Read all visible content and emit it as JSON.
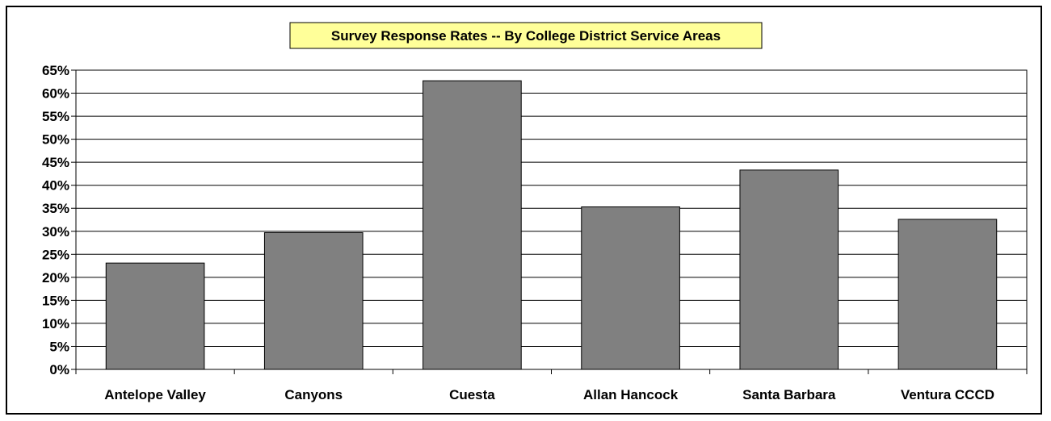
{
  "chart_data": {
    "type": "bar",
    "title": "Survey Response Rates -- By College District Service Areas",
    "xlabel": "",
    "ylabel": "",
    "categories": [
      "Antelope Valley",
      "Canyons",
      "Cuesta",
      "Allan Hancock",
      "Santa Barbara",
      "Ventura CCCD"
    ],
    "values": [
      23.1,
      29.7,
      62.7,
      35.3,
      43.3,
      32.6
    ],
    "ylim": [
      0,
      65
    ],
    "yticks": [
      0,
      5,
      10,
      15,
      20,
      25,
      30,
      35,
      40,
      45,
      50,
      55,
      60,
      65
    ],
    "ytick_suffix": "%",
    "grid": true,
    "legend": "none",
    "colors": {
      "bar_fill": "#808080",
      "bar_stroke": "#000000",
      "title_background": "#ffff99",
      "plot_background": "#ffffff",
      "grid": "#000000"
    }
  }
}
